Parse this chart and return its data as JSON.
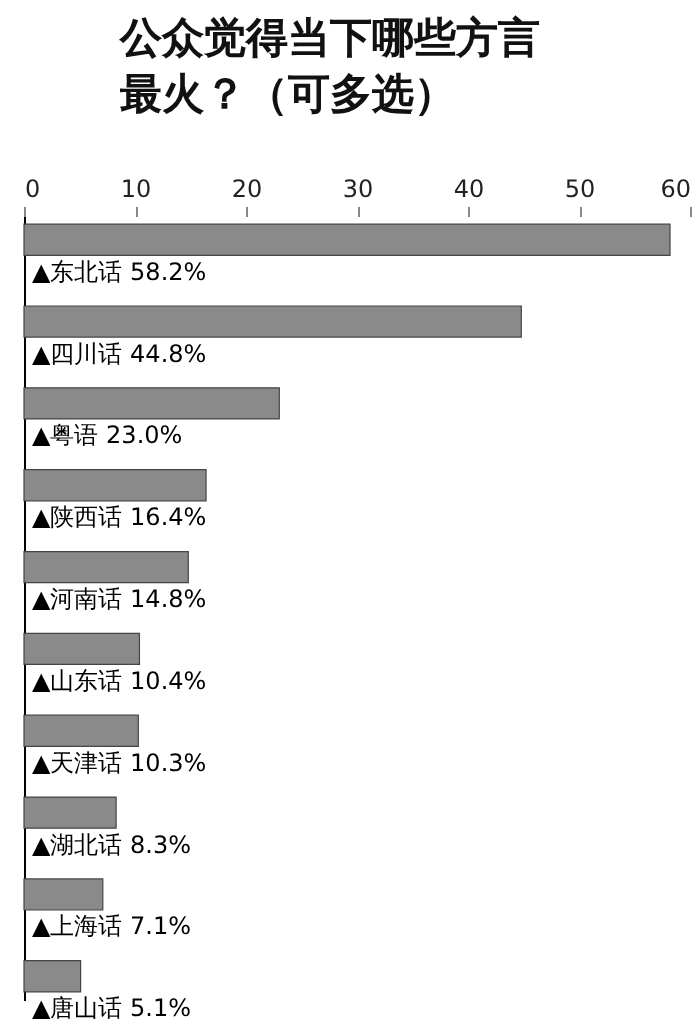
{
  "chart_data": {
    "type": "bar",
    "orientation": "horizontal",
    "title": "公众觉得当下哪些方言最火？（可多选）",
    "categories": [
      "▲东北话",
      "▲四川话",
      "▲粤语",
      "▲陕西话",
      "▲河南话",
      "▲山东话",
      "▲天津话",
      "▲湖北话",
      "▲上海话",
      "▲唐山话"
    ],
    "values": [
      58.2,
      44.8,
      23.0,
      16.4,
      14.8,
      10.4,
      10.3,
      8.3,
      7.1,
      5.1
    ],
    "value_labels": [
      "58.2%",
      "44.8%",
      "23.0%",
      "16.4%",
      "14.8%",
      "10.4%",
      "10.3%",
      "8.3%",
      "7.1%",
      "5.1%"
    ],
    "color": "#8a8a8a",
    "xlim": [
      0,
      60
    ],
    "xticks": [
      0,
      10,
      20,
      30,
      40,
      50,
      60
    ],
    "grid": false
  }
}
